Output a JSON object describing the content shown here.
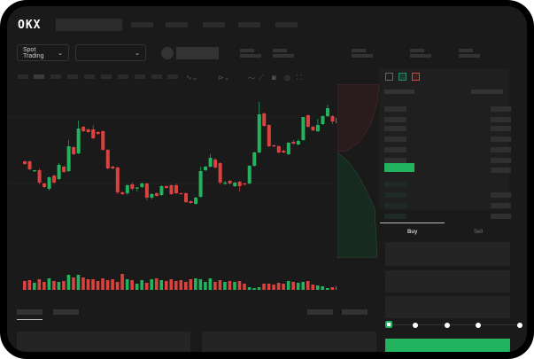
{
  "header": {
    "logo": "OKX"
  },
  "toolbar": {
    "market_type": "Spot Trading",
    "pair_selector": ""
  },
  "order_entry": {
    "tabs": [
      "Buy",
      "Sell"
    ],
    "active_tab": "Buy",
    "slider_percent": 0
  },
  "colors": {
    "up": "#22b35e",
    "down": "#d9423f",
    "accent": "#22b35e",
    "background": "#1a1a1a"
  },
  "icons": [
    "indicator-icon",
    "drawing-icon",
    "ruler-icon",
    "camera-icon",
    "settings-icon",
    "fullscreen-icon",
    "orderbook-both-icon",
    "orderbook-bids-icon",
    "orderbook-asks-icon",
    "chevron-down-icon"
  ],
  "chart_data": {
    "type": "candlestick",
    "ohlc": [
      [
        58,
        59,
        54,
        55
      ],
      [
        58,
        59,
        48,
        49
      ],
      [
        47,
        48,
        46,
        48
      ],
      [
        48,
        50,
        32,
        34
      ],
      [
        33,
        34,
        28,
        29
      ],
      [
        27,
        41,
        25,
        40
      ],
      [
        42,
        43,
        33,
        34
      ],
      [
        38,
        56,
        37,
        54
      ],
      [
        52,
        53,
        45,
        46
      ],
      [
        47,
        82,
        46,
        75
      ],
      [
        74,
        75,
        65,
        66
      ],
      [
        67,
        104,
        66,
        95
      ],
      [
        97,
        98,
        91,
        92
      ],
      [
        94,
        95,
        90,
        91
      ],
      [
        94,
        99,
        83,
        84
      ],
      [
        91,
        92,
        88,
        89
      ],
      [
        92,
        93,
        70,
        71
      ],
      [
        71,
        72,
        49,
        50
      ],
      [
        52,
        53,
        49,
        50
      ],
      [
        51,
        52,
        21,
        23
      ],
      [
        23,
        24,
        20,
        21
      ],
      [
        22,
        32,
        20,
        31
      ],
      [
        32,
        34,
        25,
        27
      ],
      [
        28,
        29,
        24,
        28.5
      ],
      [
        29,
        34,
        28,
        33
      ],
      [
        33,
        34,
        14,
        17
      ],
      [
        17,
        22,
        15,
        21
      ],
      [
        22,
        23,
        18,
        19
      ],
      [
        20,
        31,
        19,
        30
      ],
      [
        30,
        31,
        27,
        28
      ],
      [
        31,
        32,
        20,
        21
      ],
      [
        31,
        33,
        21,
        22
      ],
      [
        22,
        23,
        21,
        21
      ],
      [
        22,
        23,
        11,
        12
      ],
      [
        13,
        14,
        10,
        11
      ],
      [
        10,
        18,
        9,
        17
      ],
      [
        18,
        52,
        17,
        47
      ],
      [
        48,
        53,
        47,
        52
      ],
      [
        52,
        66,
        51,
        62
      ],
      [
        60,
        62,
        50,
        51
      ],
      [
        56,
        57,
        32,
        34
      ],
      [
        33,
        36,
        31,
        34
      ],
      [
        36,
        37,
        32,
        33
      ],
      [
        30,
        35,
        29,
        34
      ],
      [
        35,
        36,
        24,
        30
      ],
      [
        33,
        34,
        31,
        32
      ],
      [
        33,
        54,
        32,
        53
      ],
      [
        53,
        69,
        52,
        68
      ],
      [
        68,
        125,
        67,
        111
      ],
      [
        112,
        113,
        97,
        98
      ],
      [
        99,
        100,
        74,
        75
      ],
      [
        76,
        77,
        74,
        75
      ],
      [
        75,
        76,
        67,
        68
      ],
      [
        70,
        71,
        67,
        68
      ],
      [
        66,
        80,
        65,
        79
      ],
      [
        80,
        82,
        77,
        78
      ],
      [
        77,
        83,
        76,
        81
      ],
      [
        82,
        108,
        81,
        108
      ],
      [
        110,
        111,
        96,
        97
      ],
      [
        97,
        98,
        92,
        93
      ],
      [
        92,
        106,
        91,
        99
      ],
      [
        100,
        110,
        99,
        109
      ],
      [
        109,
        122,
        108,
        118
      ],
      [
        109,
        110,
        100,
        103
      ],
      [
        101,
        108,
        100,
        107
      ]
    ],
    "volume": [
      10,
      11,
      8,
      12,
      9,
      13,
      10,
      9,
      10,
      17,
      14,
      17,
      14,
      12,
      12,
      10,
      13,
      11,
      12,
      9,
      18,
      12,
      11,
      7,
      11,
      8,
      12,
      13,
      11,
      10,
      12,
      10,
      11,
      9,
      12,
      13,
      12,
      9,
      13,
      9,
      11,
      9,
      10,
      9,
      10,
      7,
      3,
      2,
      3,
      7,
      7,
      6,
      8,
      7,
      10,
      9,
      8,
      9,
      10,
      6,
      5,
      4,
      2,
      3,
      4
    ]
  }
}
